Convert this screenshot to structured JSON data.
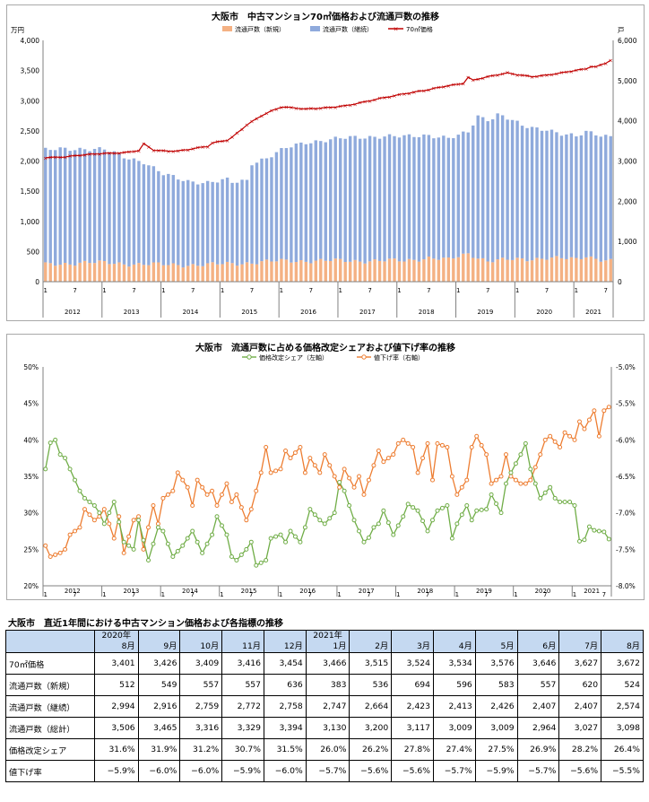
{
  "chart_data": [
    {
      "type": "bar+line",
      "title": "大阪市　中古マンション70㎡価格および流通戸数の推移",
      "left_unit": "万円",
      "right_unit": "戸",
      "left_ticks": [
        "0",
        "500",
        "1,000",
        "1,500",
        "2,000",
        "2,500",
        "3,000",
        "3,500",
        "4,000"
      ],
      "right_ticks": [
        "0",
        "1,000",
        "2,000",
        "3,000",
        "4,000",
        "5,000",
        "6,000"
      ],
      "ylim_left": [
        0,
        4000
      ],
      "ylim_right": [
        0,
        6000
      ],
      "month_ticks": [
        "1",
        "7"
      ],
      "years": [
        "2012",
        "2013",
        "2014",
        "2015",
        "2016",
        "2017",
        "2018",
        "2019",
        "2020",
        "2021"
      ],
      "legend": [
        "流通戸数（新規）",
        "流通戸数（継続）",
        "70㎡価格"
      ],
      "colors": {
        "new": "#f4b183",
        "cont": "#8faadc",
        "price": "#c00000"
      },
      "price_anchors": [
        [
          0,
          2060
        ],
        [
          6,
          2070
        ],
        [
          12,
          2100
        ],
        [
          18,
          2130
        ],
        [
          24,
          2140
        ],
        [
          28,
          2170
        ],
        [
          30,
          2280
        ],
        [
          33,
          2180
        ],
        [
          36,
          2170
        ],
        [
          40,
          2170
        ],
        [
          42,
          2190
        ],
        [
          48,
          2240
        ],
        [
          50,
          2300
        ],
        [
          54,
          2350
        ],
        [
          56,
          2400
        ],
        [
          60,
          2600
        ],
        [
          64,
          2750
        ],
        [
          67,
          2830
        ],
        [
          70,
          2900
        ],
        [
          73,
          2890
        ],
        [
          78,
          2860
        ],
        [
          84,
          2880
        ],
        [
          90,
          2920
        ],
        [
          96,
          2980
        ],
        [
          102,
          3050
        ],
        [
          108,
          3120
        ],
        [
          114,
          3180
        ],
        [
          120,
          3250
        ],
        [
          125,
          3290
        ],
        [
          127,
          3390
        ],
        [
          128,
          3340
        ],
        [
          130,
          3360
        ],
        [
          134,
          3410
        ],
        [
          138,
          3460
        ],
        [
          146,
          3400
        ],
        [
          150,
          3420
        ],
        [
          154,
          3460
        ],
        [
          158,
          3510
        ],
        [
          161,
          3530
        ],
        [
          163,
          3570
        ],
        [
          164,
          3560
        ],
        [
          166,
          3590
        ],
        [
          168,
          3620
        ],
        [
          169,
          3670
        ]
      ],
      "cont_anchors": [
        [
          0,
          2850
        ],
        [
          6,
          2850
        ],
        [
          12,
          2830
        ],
        [
          18,
          2820
        ],
        [
          24,
          2650
        ],
        [
          30,
          2550
        ],
        [
          36,
          2250
        ],
        [
          40,
          2140
        ],
        [
          42,
          2080
        ],
        [
          48,
          2050
        ],
        [
          54,
          2080
        ],
        [
          55,
          2000
        ],
        [
          60,
          2050
        ],
        [
          61,
          2480
        ],
        [
          66,
          2580
        ],
        [
          72,
          2800
        ],
        [
          78,
          2950
        ],
        [
          84,
          3000
        ],
        [
          90,
          3050
        ],
        [
          96,
          3080
        ],
        [
          102,
          3100
        ],
        [
          108,
          3080
        ],
        [
          114,
          3050
        ],
        [
          120,
          3030
        ],
        [
          124,
          3000
        ],
        [
          126,
          3020
        ],
        [
          130,
          3500
        ],
        [
          133,
          3550
        ],
        [
          134,
          3650
        ],
        [
          136,
          3600
        ],
        [
          140,
          3450
        ],
        [
          143,
          3320
        ],
        [
          146,
          3250
        ],
        [
          150,
          3200
        ],
        [
          154,
          3100
        ],
        [
          158,
          3050
        ],
        [
          163,
          3090
        ],
        [
          169,
          3100
        ]
      ],
      "new_anchors": [
        [
          0,
          420
        ],
        [
          12,
          480
        ],
        [
          24,
          450
        ],
        [
          36,
          420
        ],
        [
          48,
          420
        ],
        [
          60,
          470
        ],
        [
          72,
          520
        ],
        [
          84,
          520
        ],
        [
          96,
          520
        ],
        [
          108,
          520
        ],
        [
          114,
          600
        ],
        [
          120,
          540
        ],
        [
          126,
          700
        ],
        [
          132,
          520
        ],
        [
          144,
          560
        ],
        [
          150,
          600
        ],
        [
          158,
          550
        ],
        [
          162,
          640
        ],
        [
          166,
          560
        ],
        [
          169,
          520
        ]
      ]
    },
    {
      "type": "line",
      "title": "大阪市　流通戸数に占める価格改定シェアおよび値下げ率の推移",
      "left_ticks": [
        "20%",
        "25%",
        "30%",
        "35%",
        "40%",
        "45%",
        "50%"
      ],
      "right_ticks": [
        "-8.0%",
        "-7.5%",
        "-7.0%",
        "-6.5%",
        "-6.0%",
        "-5.5%",
        "-5.0%"
      ],
      "ylim_left": [
        20,
        50
      ],
      "ylim_right": [
        -8.0,
        -5.0
      ],
      "legend": [
        "価格改定シェア（左軸）",
        "値下げ率（右軸）"
      ],
      "colors": {
        "share": "#70ad47",
        "rate": "#ed7d31"
      },
      "share_anchors": [
        [
          0,
          36
        ],
        [
          2,
          39.6
        ],
        [
          3,
          40
        ],
        [
          4,
          38
        ],
        [
          6,
          37.5
        ],
        [
          8,
          36
        ],
        [
          10,
          33
        ],
        [
          12,
          32
        ],
        [
          14,
          31
        ],
        [
          16,
          30
        ],
        [
          18,
          28.5
        ],
        [
          20,
          31.5
        ],
        [
          24,
          26
        ],
        [
          26,
          25
        ],
        [
          28,
          29
        ],
        [
          31,
          23.5
        ],
        [
          34,
          28
        ],
        [
          36,
          27.5
        ],
        [
          38,
          24
        ],
        [
          41,
          25.5
        ],
        [
          44,
          27.5
        ],
        [
          47,
          24.5
        ],
        [
          50,
          27
        ],
        [
          52,
          29.5
        ],
        [
          54,
          27
        ],
        [
          56,
          24
        ],
        [
          58,
          23.5
        ],
        [
          60,
          25
        ],
        [
          62,
          26
        ],
        [
          63,
          22.8
        ],
        [
          66,
          23.5
        ],
        [
          68,
          26.5
        ],
        [
          70,
          27
        ],
        [
          72,
          26
        ],
        [
          74,
          27.5
        ],
        [
          76,
          26
        ],
        [
          78,
          28
        ],
        [
          80,
          30.5
        ],
        [
          82,
          29
        ],
        [
          84,
          28.5
        ],
        [
          86,
          30
        ],
        [
          88,
          34.2
        ],
        [
          90,
          33
        ],
        [
          93,
          29
        ],
        [
          95,
          26
        ],
        [
          96,
          25.2
        ],
        [
          98,
          28
        ],
        [
          100,
          28.5
        ],
        [
          102,
          30.3
        ],
        [
          104,
          27
        ],
        [
          107,
          29.5
        ],
        [
          109,
          31.2
        ],
        [
          111,
          30.3
        ],
        [
          114,
          27.5
        ],
        [
          116,
          29
        ],
        [
          118,
          30.3
        ],
        [
          120,
          31
        ],
        [
          122,
          26.5
        ],
        [
          124,
          28.5
        ],
        [
          126,
          31
        ],
        [
          128,
          29
        ],
        [
          130,
          30.3
        ],
        [
          132,
          30.5
        ],
        [
          134,
          32.5
        ],
        [
          136,
          30
        ],
        [
          138,
          34
        ],
        [
          140,
          35.5
        ],
        [
          142,
          38
        ],
        [
          144,
          39.5
        ],
        [
          146,
          36
        ],
        [
          148,
          32
        ],
        [
          151,
          33.5
        ],
        [
          153,
          32
        ],
        [
          155,
          31.5
        ],
        [
          157,
          31.5
        ],
        [
          159,
          31
        ],
        [
          160,
          26.1
        ],
        [
          162,
          26.3
        ],
        [
          163,
          28.1
        ],
        [
          165,
          27.6
        ],
        [
          167,
          27.4
        ],
        [
          168,
          28.2
        ],
        [
          169,
          26.4
        ]
      ],
      "rate_anchors": [
        [
          0,
          -7.45
        ],
        [
          2,
          -7.6
        ],
        [
          4,
          -7.55
        ],
        [
          6,
          -7.5
        ],
        [
          8,
          -7.3
        ],
        [
          10,
          -7.2
        ],
        [
          12,
          -6.95
        ],
        [
          14,
          -7.1
        ],
        [
          16,
          -7.05
        ],
        [
          18,
          -6.95
        ],
        [
          20,
          -7.35
        ],
        [
          22,
          -7.05
        ],
        [
          24,
          -7.55
        ],
        [
          26,
          -7.1
        ],
        [
          28,
          -7.05
        ],
        [
          30,
          -7.5
        ],
        [
          32,
          -6.9
        ],
        [
          34,
          -7.15
        ],
        [
          36,
          -6.8
        ],
        [
          38,
          -6.7
        ],
        [
          40,
          -6.45
        ],
        [
          42,
          -6.65
        ],
        [
          44,
          -6.9
        ],
        [
          46,
          -6.55
        ],
        [
          48,
          -6.75
        ],
        [
          50,
          -6.7
        ],
        [
          52,
          -6.9
        ],
        [
          54,
          -6.6
        ],
        [
          56,
          -6.85
        ],
        [
          58,
          -6.75
        ],
        [
          60,
          -7.1
        ],
        [
          62,
          -6.95
        ],
        [
          64,
          -6.45
        ],
        [
          66,
          -6.1
        ],
        [
          68,
          -6.45
        ],
        [
          70,
          -6.4
        ],
        [
          72,
          -6.15
        ],
        [
          74,
          -6.25
        ],
        [
          76,
          -6.1
        ],
        [
          78,
          -6.45
        ],
        [
          80,
          -6.25
        ],
        [
          82,
          -6.45
        ],
        [
          84,
          -6.2
        ],
        [
          86,
          -6.5
        ],
        [
          88,
          -6.65
        ],
        [
          90,
          -6.4
        ],
        [
          92,
          -6.65
        ],
        [
          94,
          -6.5
        ],
        [
          96,
          -6.75
        ],
        [
          98,
          -6.35
        ],
        [
          100,
          -6.15
        ],
        [
          102,
          -6.3
        ],
        [
          104,
          -6.2
        ],
        [
          106,
          -6.05
        ],
        [
          108,
          -6.0
        ],
        [
          110,
          -6.1
        ],
        [
          112,
          -6.45
        ],
        [
          114,
          -6.05
        ],
        [
          116,
          -6.55
        ],
        [
          118,
          -6.05
        ],
        [
          120,
          -6.1
        ],
        [
          122,
          -6.5
        ],
        [
          124,
          -6.75
        ],
        [
          126,
          -6.55
        ],
        [
          128,
          -6.1
        ],
        [
          130,
          -5.95
        ],
        [
          132,
          -6.2
        ],
        [
          134,
          -6.6
        ],
        [
          136,
          -6.5
        ],
        [
          138,
          -6.2
        ],
        [
          140,
          -6.5
        ],
        [
          142,
          -6.6
        ],
        [
          144,
          -6.6
        ],
        [
          146,
          -6.55
        ],
        [
          148,
          -6.2
        ],
        [
          150,
          -6.0
        ],
        [
          152,
          -5.95
        ],
        [
          154,
          -6.1
        ],
        [
          156,
          -5.9
        ],
        [
          158,
          -6.0
        ],
        [
          160,
          -5.75
        ],
        [
          162,
          -5.85
        ],
        [
          164,
          -5.6
        ],
        [
          166,
          -5.95
        ],
        [
          168,
          -5.6
        ],
        [
          169,
          -5.55
        ]
      ]
    }
  ],
  "table": {
    "title": "大阪市　直近1年間における中古マンション価格および各指標の推移",
    "header_years": [
      "2020年",
      "",
      "",
      "",
      "",
      "2021年",
      "",
      "",
      "",
      "",
      "",
      "",
      ""
    ],
    "header_months": [
      "8月",
      "9月",
      "10月",
      "11月",
      "12月",
      "1月",
      "2月",
      "3月",
      "4月",
      "5月",
      "6月",
      "7月",
      "8月"
    ],
    "rows": [
      {
        "label": "70㎡価格",
        "values": [
          "3,401",
          "3,426",
          "3,409",
          "3,416",
          "3,454",
          "3,466",
          "3,515",
          "3,524",
          "3,534",
          "3,576",
          "3,646",
          "3,627",
          "3,672"
        ]
      },
      {
        "label": "流通戸数（新規）",
        "values": [
          "512",
          "549",
          "557",
          "557",
          "636",
          "383",
          "536",
          "694",
          "596",
          "583",
          "557",
          "620",
          "524"
        ]
      },
      {
        "label": "流通戸数（継続）",
        "values": [
          "2,994",
          "2,916",
          "2,759",
          "2,772",
          "2,758",
          "2,747",
          "2,664",
          "2,423",
          "2,413",
          "2,426",
          "2,407",
          "2,407",
          "2,574"
        ]
      },
      {
        "label": "流通戸数（総計）",
        "values": [
          "3,506",
          "3,465",
          "3,316",
          "3,329",
          "3,394",
          "3,130",
          "3,200",
          "3,117",
          "3,009",
          "3,009",
          "2,964",
          "3,027",
          "3,098"
        ]
      },
      {
        "label": "価格改定シェア",
        "values": [
          "31.6%",
          "31.9%",
          "31.2%",
          "30.7%",
          "31.5%",
          "26.0%",
          "26.2%",
          "27.8%",
          "27.4%",
          "27.5%",
          "26.9%",
          "28.2%",
          "26.4%"
        ]
      },
      {
        "label": "値下げ率",
        "values": [
          "−5.9%",
          "−6.0%",
          "−6.0%",
          "−5.9%",
          "−6.0%",
          "−5.7%",
          "−5.6%",
          "−5.6%",
          "−5.7%",
          "−5.9%",
          "−5.7%",
          "−5.6%",
          "−5.5%"
        ]
      }
    ]
  }
}
